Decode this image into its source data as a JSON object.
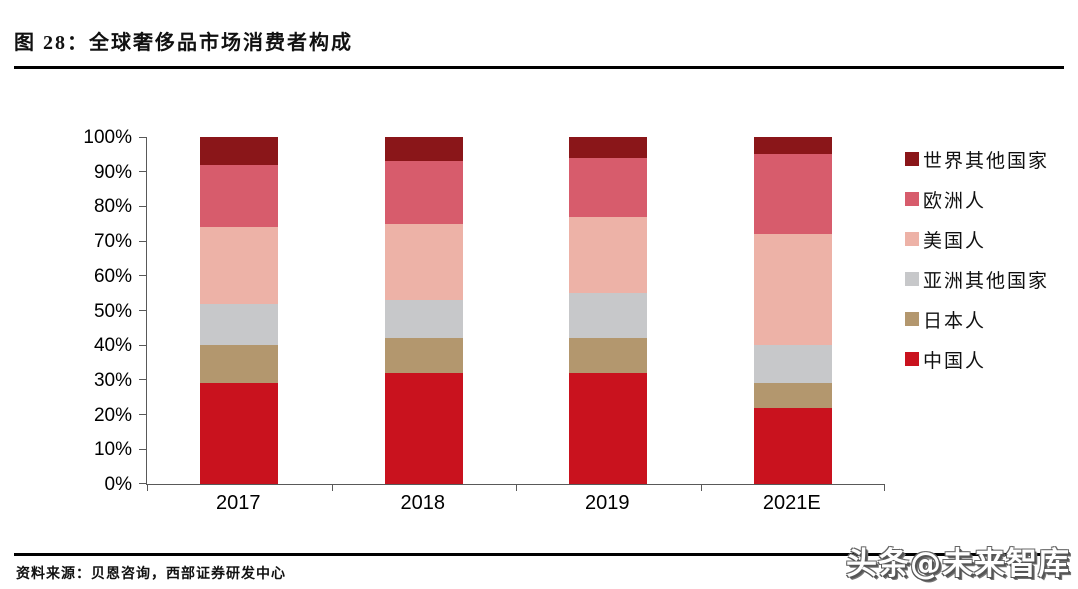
{
  "header": {
    "title": "图 28：全球奢侈品市场消费者构成"
  },
  "footer": {
    "source": "资料来源：贝恩咨询，西部证券研发中心"
  },
  "watermark": {
    "text": "头条@未来智库"
  },
  "chart_data": {
    "type": "bar",
    "subtype": "stacked-100-percent",
    "title": "全球奢侈品市场消费者构成",
    "categories": [
      "2017",
      "2018",
      "2019",
      "2021E"
    ],
    "series": [
      {
        "name": "中国人",
        "color": "#C9121E",
        "values": [
          29,
          32,
          32,
          22
        ]
      },
      {
        "name": "日本人",
        "color": "#B3976E",
        "values": [
          11,
          10,
          10,
          7
        ]
      },
      {
        "name": "亚洲其他国家",
        "color": "#C7C8CA",
        "values": [
          12,
          11,
          13,
          11
        ]
      },
      {
        "name": "美国人",
        "color": "#EDB2A7",
        "values": [
          22,
          22,
          22,
          32
        ]
      },
      {
        "name": "欧洲人",
        "color": "#D75C6C",
        "values": [
          18,
          18,
          17,
          23
        ]
      },
      {
        "name": "世界其他国家",
        "color": "#8A1619",
        "values": [
          8,
          7,
          6,
          5
        ]
      }
    ],
    "legend_order_top_to_bottom": [
      "世界其他国家",
      "欧洲人",
      "美国人",
      "亚洲其他国家",
      "日本人",
      "中国人"
    ],
    "legend_position": "right",
    "y_ticks": [
      "0%",
      "10%",
      "20%",
      "30%",
      "40%",
      "50%",
      "60%",
      "70%",
      "80%",
      "90%",
      "100%"
    ],
    "ylim": [
      0,
      100
    ],
    "grid": false,
    "axis_color": "#595959"
  }
}
